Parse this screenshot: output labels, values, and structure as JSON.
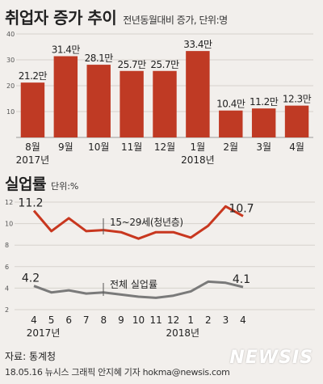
{
  "title": "취업자 증가 추이",
  "subtitle": "전년동월대비 증가, 단위:명",
  "colors": {
    "bar": "#bf3a24",
    "line_youth": "#c8371f",
    "line_total": "#7a7a7a",
    "grid": "#d6d2cd",
    "background": "#f2efec"
  },
  "chart_data": [
    {
      "type": "bar",
      "categories": [
        "8월",
        "9월",
        "10월",
        "11월",
        "12월",
        "1월",
        "2월",
        "3월",
        "4월"
      ],
      "year_labels": [
        "2017년",
        "2018년"
      ],
      "values": [
        21.2,
        31.4,
        28.1,
        25.7,
        25.7,
        33.4,
        10.4,
        11.2,
        12.3
      ],
      "value_labels": [
        "21.2만",
        "31.4만",
        "28.1만",
        "25.7만",
        "25.7만",
        "33.4만",
        "10.4만",
        "11.2만",
        "12.3만"
      ],
      "ylim": [
        0,
        40
      ],
      "yticks": [
        "40",
        "30",
        "20",
        "10"
      ],
      "grid": true
    },
    {
      "type": "line",
      "title": "실업률",
      "unit": "단위:%",
      "categories": [
        "4",
        "5",
        "6",
        "7",
        "8",
        "9",
        "10",
        "11",
        "12",
        "1",
        "2",
        "3",
        "4"
      ],
      "year_labels": [
        "2017년",
        "2018년"
      ],
      "ylim": [
        2,
        12
      ],
      "yticks": [
        "12",
        "10",
        "8",
        "6",
        "4",
        "2"
      ],
      "grid": true,
      "series": [
        {
          "name": "15~29세(청년층)",
          "values": [
            11.2,
            9.3,
            10.5,
            9.3,
            9.4,
            9.2,
            8.6,
            9.2,
            9.2,
            8.7,
            9.8,
            11.6,
            10.7
          ],
          "start_label": "11.2",
          "end_label": "10.7"
        },
        {
          "name": "전체 실업률",
          "values": [
            4.2,
            3.6,
            3.8,
            3.5,
            3.6,
            3.4,
            3.2,
            3.1,
            3.3,
            3.7,
            4.6,
            4.5,
            4.1
          ],
          "start_label": "4.2",
          "end_label": "4.1"
        }
      ]
    }
  ],
  "source": "자료: 통계청",
  "credit": "18.05.16 뉴시스 그래픽 안지혜 기자 hokma@newsis.com",
  "logo": "NEWSIS"
}
